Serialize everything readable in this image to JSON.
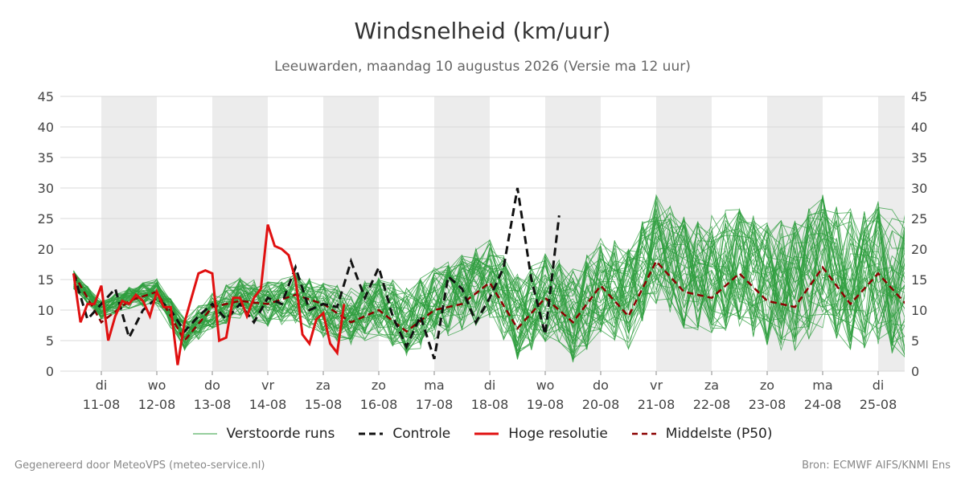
{
  "title": "Windsnelheid (km/uur)",
  "subtitle": "Leeuwarden, maandag 10 augustus 2026 (Versie ma 12 uur)",
  "footer_left": "Gegenereerd door MeteoVPS (meteo-service.nl)",
  "footer_right": "Bron: ECMWF AIFS/KNMI Ens",
  "colors": {
    "ensemble": "#2e9e3e",
    "control": "#111111",
    "highres": "#e01010",
    "median": "#8b0000",
    "band": "#ececec",
    "grid": "#d9d9d9"
  },
  "chart_data": {
    "type": "line",
    "ylim": [
      0,
      45
    ],
    "yticks": [
      0,
      5,
      10,
      15,
      20,
      25,
      30,
      35,
      40,
      45
    ],
    "x_start": "10-08 12:00",
    "step_hours": 12,
    "days": [
      {
        "name": "di",
        "date": "11-08"
      },
      {
        "name": "wo",
        "date": "12-08"
      },
      {
        "name": "do",
        "date": "13-08"
      },
      {
        "name": "vr",
        "date": "14-08"
      },
      {
        "name": "za",
        "date": "15-08"
      },
      {
        "name": "zo",
        "date": "16-08"
      },
      {
        "name": "ma",
        "date": "17-08"
      },
      {
        "name": "di",
        "date": "18-08"
      },
      {
        "name": "wo",
        "date": "19-08"
      },
      {
        "name": "do",
        "date": "20-08"
      },
      {
        "name": "vr",
        "date": "21-08"
      },
      {
        "name": "za",
        "date": "22-08"
      },
      {
        "name": "zo",
        "date": "23-08"
      },
      {
        "name": "ma",
        "date": "24-08"
      },
      {
        "name": "di",
        "date": "25-08"
      }
    ],
    "legend": [
      {
        "key": "ensemble",
        "label": "Verstoorde runs"
      },
      {
        "key": "control",
        "label": "Controle"
      },
      {
        "key": "highres",
        "label": "Hoge resolutie"
      },
      {
        "key": "median",
        "label": "Middelste (P50)"
      }
    ],
    "highres": {
      "name": "Hoge resolutie",
      "x_hours": [
        0,
        3,
        6,
        9,
        12,
        15,
        18,
        21,
        24,
        27,
        30,
        33,
        36,
        39,
        42,
        45,
        48,
        51,
        54,
        57,
        60,
        63,
        66,
        69,
        72,
        75,
        78,
        81,
        84,
        87,
        90,
        93,
        96,
        99,
        102,
        105,
        108,
        111,
        114,
        117,
        120,
        123,
        126,
        129,
        132,
        135,
        138,
        141,
        144,
        147,
        150,
        153,
        156,
        159,
        162,
        165,
        168,
        171,
        174,
        177,
        180,
        183,
        186,
        189,
        192,
        195,
        198,
        201,
        204,
        207,
        210,
        213,
        216,
        219,
        222,
        225,
        228,
        231,
        234,
        237,
        240
      ],
      "values": [
        16,
        8,
        11,
        11,
        14,
        5,
        9,
        11.5,
        11,
        12.5,
        11.5,
        9,
        13,
        10.5,
        10.5,
        1,
        8,
        12,
        16,
        16.5,
        16,
        5,
        5.5,
        12,
        12,
        9,
        12,
        13.5,
        24,
        20.5,
        20,
        19,
        15,
        6,
        4.5,
        8.5,
        9.5,
        4.5,
        3,
        11,
        null,
        null,
        null,
        null,
        null,
        null,
        null,
        null,
        null,
        null,
        null,
        null,
        null,
        null,
        null,
        null,
        null,
        null,
        null,
        null,
        null,
        null,
        null,
        null,
        null,
        null,
        null,
        null,
        null,
        null,
        null,
        null,
        null,
        null,
        null,
        null,
        null,
        null,
        null,
        null,
        null
      ]
    },
    "control": {
      "name": "Controle",
      "x_hours": [
        0,
        6,
        12,
        18,
        24,
        30,
        36,
        42,
        48,
        54,
        60,
        66,
        72,
        78,
        84,
        90,
        96,
        102,
        108,
        114,
        120,
        126,
        132,
        138,
        144,
        150,
        156,
        162,
        168,
        174,
        180,
        186,
        192,
        198,
        204,
        210,
        216,
        222,
        228,
        234,
        240
      ],
      "values": [
        16,
        8.5,
        11,
        13.5,
        5.5,
        10,
        12,
        10,
        6.5,
        9,
        11,
        8.5,
        11,
        8,
        12,
        11,
        17,
        10,
        11,
        10.5,
        18,
        12,
        17,
        9,
        4,
        9,
        2,
        15.5,
        13.5,
        8,
        12,
        17,
        30,
        15,
        6,
        25.5,
        null,
        null,
        null,
        null,
        null
      ]
    },
    "median": {
      "name": "Middelste (P50)",
      "x_days": [
        0,
        0.5,
        1,
        1.5,
        2,
        2.5,
        3,
        3.5,
        4,
        4.5,
        5,
        5.5,
        6,
        6.5,
        7,
        7.5,
        8,
        8.5,
        9,
        9.5,
        10,
        10.5,
        11,
        11.5,
        12,
        12.5,
        13,
        13.5,
        14,
        14.5,
        15,
        15.25
      ],
      "values": [
        16,
        8,
        11.5,
        13,
        5,
        10.5,
        11.5,
        11,
        12.5,
        11,
        8,
        10,
        6.5,
        10,
        11,
        14.5,
        7,
        12,
        8,
        14,
        9,
        18,
        13,
        12,
        16,
        11.5,
        10.5,
        17,
        11,
        16,
        11,
        18
      ]
    },
    "ensemble_member_count": 50,
    "ensemble_mean_profile": [
      15,
      10,
      12,
      13,
      6,
      10,
      12,
      11,
      12,
      10,
      9,
      11,
      8,
      11,
      13,
      15,
      9,
      12,
      9,
      14,
      12,
      20,
      16,
      16,
      17,
      14,
      14,
      18,
      15,
      16,
      14,
      17
    ]
  }
}
